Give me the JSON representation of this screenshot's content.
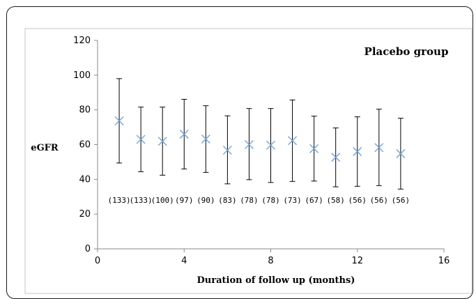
{
  "chart_data": {
    "type": "scatter",
    "title": "Placebo group",
    "xlabel": "Duration of follow up (months)",
    "ylabel": "eGFR",
    "xlim": [
      0,
      16
    ],
    "ylim": [
      0,
      120
    ],
    "x_ticks": [
      "0",
      "4",
      "8",
      "12",
      "16"
    ],
    "y_ticks": [
      "0",
      "20",
      "40",
      "60",
      "80",
      "100",
      "120"
    ],
    "grid": false,
    "series": [
      {
        "marker": "x",
        "color": "#7ea6cf",
        "points": [
          {
            "x": 1,
            "y": 73.7,
            "low": 49.4,
            "high": 98.0,
            "n_label": "(133)"
          },
          {
            "x": 2,
            "y": 63.0,
            "low": 44.4,
            "high": 81.6,
            "n_label": "(133)"
          },
          {
            "x": 3,
            "y": 61.9,
            "low": 42.4,
            "high": 81.6,
            "n_label": "(100)"
          },
          {
            "x": 4,
            "y": 66.0,
            "low": 46.0,
            "high": 86.1,
            "n_label": "(97)"
          },
          {
            "x": 5,
            "y": 63.2,
            "low": 44.0,
            "high": 82.4,
            "n_label": "(90)"
          },
          {
            "x": 6,
            "y": 56.8,
            "low": 37.4,
            "high": 76.6,
            "n_label": "(83)"
          },
          {
            "x": 7,
            "y": 60.0,
            "low": 39.8,
            "high": 80.8,
            "n_label": "(78)"
          },
          {
            "x": 8,
            "y": 59.7,
            "low": 38.2,
            "high": 80.8,
            "n_label": "(78)"
          },
          {
            "x": 9,
            "y": 62.3,
            "low": 38.8,
            "high": 85.7,
            "n_label": "(73)"
          },
          {
            "x": 10,
            "y": 57.7,
            "low": 39.0,
            "high": 76.4,
            "n_label": "(67)"
          },
          {
            "x": 11,
            "y": 52.7,
            "low": 35.7,
            "high": 69.6,
            "n_label": "(58)"
          },
          {
            "x": 12,
            "y": 56.0,
            "low": 36.0,
            "high": 76.0,
            "n_label": "(56)"
          },
          {
            "x": 13,
            "y": 58.3,
            "low": 36.4,
            "high": 80.4,
            "n_label": "(56)"
          },
          {
            "x": 14,
            "y": 54.8,
            "low": 34.4,
            "high": 75.2,
            "n_label": "(56)"
          }
        ]
      }
    ]
  }
}
